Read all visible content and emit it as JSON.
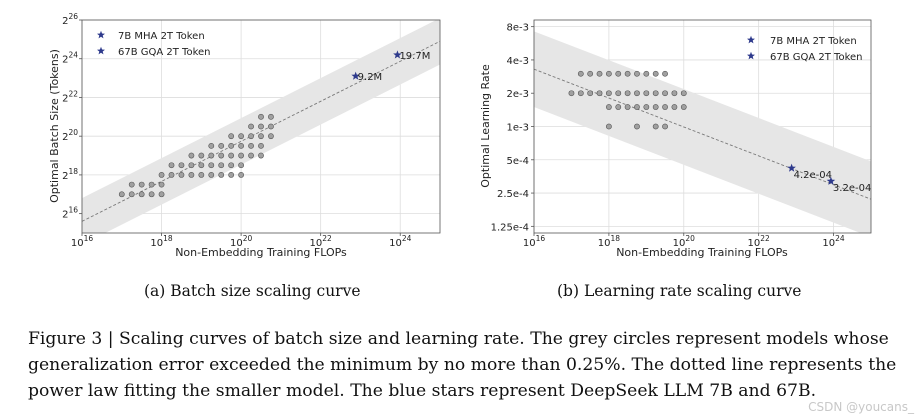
{
  "subcaptions": {
    "a": "(a)  Batch size scaling curve",
    "b": "(b)  Learning rate scaling curve"
  },
  "caption": "Figure 3 | Scaling curves of batch size and learning rate. The grey circles represent models whose generalization error exceeded the minimum by no more than 0.25%. The dotted line represents the power law fitting the smaller model. The blue stars represent DeepSeek LLM 7B and 67B.",
  "watermark": "CSDN @youcans_",
  "chart_data": [
    {
      "type": "scatter",
      "title": "",
      "xlabel": "Non-Embedding Training FLOPs",
      "ylabel": "Optimal Batch Size (Tokens)",
      "x_scale": "log",
      "y_scale": "log2",
      "xlim_log10": [
        16,
        25
      ],
      "ylim_log2": [
        15,
        26
      ],
      "x_ticks": [
        "16",
        "18",
        "20",
        "22",
        "24"
      ],
      "y_ticks": [
        "16",
        "18",
        "20",
        "22",
        "24",
        "26"
      ],
      "grid": true,
      "legend_position": "top-left",
      "colors": {
        "circle_fill": "#a0a0a0",
        "circle_edge": "#555555",
        "star": "#2e3a8c",
        "band": "#e6e6e6",
        "fit": "#7a7a7a"
      },
      "fit_line": {
        "log10_x": [
          16,
          25
        ],
        "log2_y": [
          15.6,
          24.9
        ]
      },
      "band_halfwidth_log2": 1.2,
      "series": [
        {
          "name": "7B MHA 2T Token",
          "x_log10": [
            22.88
          ],
          "y_log2": [
            23.1
          ],
          "labels": [
            "9.2M"
          ]
        },
        {
          "name": "67B GQA 2T Token",
          "x_log10": [
            23.93
          ],
          "y_log2": [
            24.2
          ],
          "labels": [
            "19.7M"
          ]
        }
      ],
      "circles": [
        [
          17.0,
          17.0
        ],
        [
          17.25,
          17.0
        ],
        [
          17.5,
          17.0
        ],
        [
          17.75,
          17.0
        ],
        [
          18.0,
          17.0
        ],
        [
          17.25,
          17.5
        ],
        [
          17.5,
          17.5
        ],
        [
          17.75,
          17.5
        ],
        [
          18.0,
          17.5
        ],
        [
          18.0,
          18.0
        ],
        [
          18.25,
          18.0
        ],
        [
          18.5,
          18.0
        ],
        [
          18.75,
          18.0
        ],
        [
          19.0,
          18.0
        ],
        [
          19.25,
          18.0
        ],
        [
          19.5,
          18.0
        ],
        [
          19.75,
          18.0
        ],
        [
          20.0,
          18.0
        ],
        [
          18.25,
          18.5
        ],
        [
          18.5,
          18.5
        ],
        [
          18.75,
          18.5
        ],
        [
          19.0,
          18.5
        ],
        [
          19.25,
          18.5
        ],
        [
          19.5,
          18.5
        ],
        [
          19.75,
          18.5
        ],
        [
          20.0,
          18.5
        ],
        [
          18.75,
          19.0
        ],
        [
          19.0,
          19.0
        ],
        [
          19.25,
          19.0
        ],
        [
          19.5,
          19.0
        ],
        [
          19.75,
          19.0
        ],
        [
          20.0,
          19.0
        ],
        [
          20.25,
          19.0
        ],
        [
          20.5,
          19.0
        ],
        [
          19.25,
          19.5
        ],
        [
          19.5,
          19.5
        ],
        [
          19.75,
          19.5
        ],
        [
          20.0,
          19.5
        ],
        [
          20.25,
          19.5
        ],
        [
          20.5,
          19.5
        ],
        [
          19.75,
          20.0
        ],
        [
          20.0,
          20.0
        ],
        [
          20.25,
          20.0
        ],
        [
          20.5,
          20.0
        ],
        [
          20.75,
          20.0
        ],
        [
          20.25,
          20.5
        ],
        [
          20.5,
          20.5
        ],
        [
          20.75,
          20.5
        ],
        [
          20.5,
          21.0
        ],
        [
          20.75,
          21.0
        ]
      ]
    },
    {
      "type": "scatter",
      "title": "",
      "xlabel": "Non-Embedding Training FLOPs",
      "ylabel": "Optimal Learning Rate",
      "x_scale": "log",
      "y_scale": "log2",
      "xlim_log10": [
        16,
        25
      ],
      "y_ticks": [
        "1.25e-4",
        "2.5e-4",
        "5e-4",
        "1e-3",
        "2e-3",
        "4e-3",
        "8e-3"
      ],
      "grid": true,
      "legend_position": "top-right",
      "colors": {
        "circle_fill": "#a0a0a0",
        "circle_edge": "#555555",
        "star": "#2e3a8c",
        "band": "#e6e6e6",
        "fit": "#7a7a7a"
      },
      "fit_line": {
        "log10_x": [
          16,
          25
        ],
        "y": [
          0.0033,
          0.00022
        ]
      },
      "band_factor": 2.2,
      "series": [
        {
          "name": "7B MHA 2T Token",
          "x_log10": [
            22.88
          ],
          "y": [
            0.00042
          ],
          "labels": [
            "4.2e-04"
          ]
        },
        {
          "name": "67B GQA 2T Token",
          "x_log10": [
            23.93
          ],
          "y": [
            0.00032
          ],
          "labels": [
            "3.2e-04"
          ]
        }
      ],
      "circles": [
        [
          17.0,
          0.002
        ],
        [
          17.25,
          0.002
        ],
        [
          17.5,
          0.002
        ],
        [
          17.75,
          0.002
        ],
        [
          18.0,
          0.002
        ],
        [
          18.25,
          0.002
        ],
        [
          18.5,
          0.002
        ],
        [
          18.75,
          0.002
        ],
        [
          19.0,
          0.002
        ],
        [
          19.25,
          0.002
        ],
        [
          19.5,
          0.002
        ],
        [
          19.75,
          0.002
        ],
        [
          20.0,
          0.002
        ],
        [
          17.25,
          0.003
        ],
        [
          17.5,
          0.003
        ],
        [
          17.75,
          0.003
        ],
        [
          18.0,
          0.003
        ],
        [
          18.25,
          0.003
        ],
        [
          18.5,
          0.003
        ],
        [
          18.75,
          0.003
        ],
        [
          19.0,
          0.003
        ],
        [
          19.25,
          0.003
        ],
        [
          19.5,
          0.003
        ],
        [
          18.0,
          0.0015
        ],
        [
          18.25,
          0.0015
        ],
        [
          18.5,
          0.0015
        ],
        [
          18.75,
          0.0015
        ],
        [
          19.0,
          0.0015
        ],
        [
          19.25,
          0.0015
        ],
        [
          19.5,
          0.0015
        ],
        [
          19.75,
          0.0015
        ],
        [
          20.0,
          0.0015
        ],
        [
          18.0,
          0.001
        ],
        [
          18.75,
          0.001
        ],
        [
          19.25,
          0.001
        ],
        [
          19.5,
          0.001
        ]
      ]
    }
  ]
}
